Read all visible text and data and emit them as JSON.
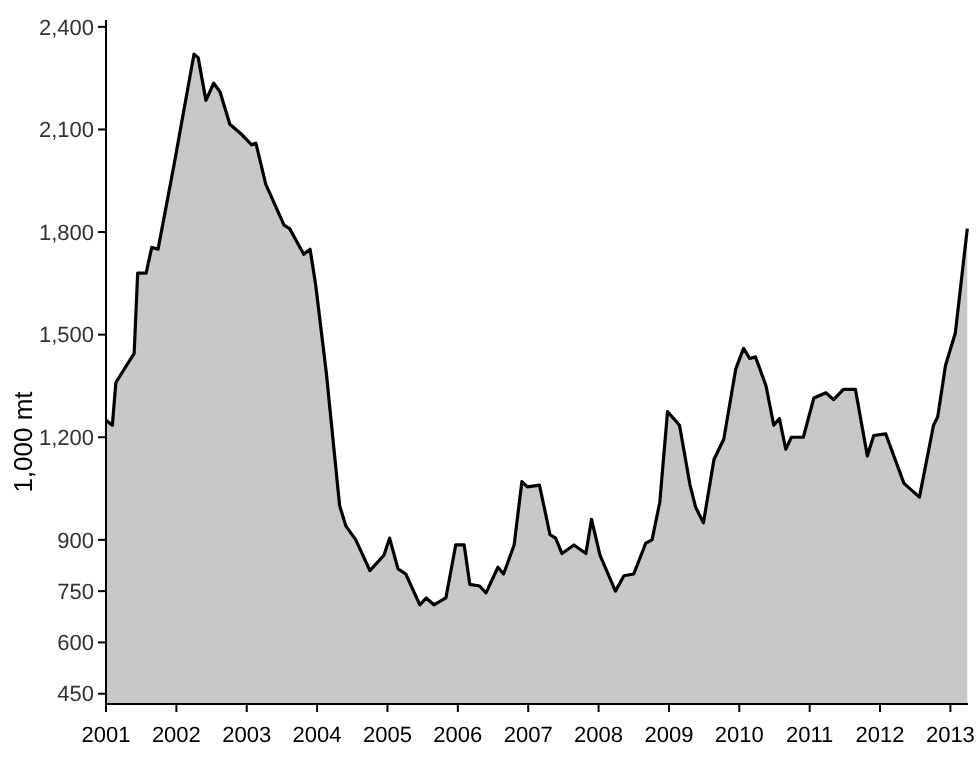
{
  "chart_data": {
    "type": "area",
    "ylabel": "1,000 mt",
    "color": "#c8c8c8",
    "x": [
      2001.0,
      2001.09,
      2001.14,
      2001.4,
      2001.45,
      2001.57,
      2001.65,
      2001.74,
      2001.97,
      2002.25,
      2002.31,
      2002.42,
      2002.53,
      2002.62,
      2002.76,
      2002.93,
      2003.07,
      2003.13,
      2003.27,
      2003.53,
      2003.61,
      2003.81,
      2003.9,
      2003.98,
      2004.13,
      2004.32,
      2004.41,
      2004.55,
      2004.75,
      2004.95,
      2005.03,
      2005.15,
      2005.26,
      2005.46,
      2005.55,
      2005.66,
      2005.83,
      2005.97,
      2006.09,
      2006.17,
      2006.31,
      2006.4,
      2006.57,
      2006.65,
      2006.8,
      2006.91,
      2006.99,
      2007.16,
      2007.31,
      2007.39,
      2007.48,
      2007.65,
      2007.82,
      2007.9,
      2008.02,
      2008.24,
      2008.36,
      2008.5,
      2008.67,
      2008.76,
      2008.87,
      2008.98,
      2009.15,
      2009.3,
      2009.38,
      2009.49,
      2009.64,
      2009.78,
      2009.95,
      2010.06,
      2010.15,
      2010.23,
      2010.38,
      2010.49,
      2010.57,
      2010.66,
      2010.74,
      2010.91,
      2011.06,
      2011.23,
      2011.34,
      2011.48,
      2011.65,
      2011.82,
      2011.91,
      2012.08,
      2012.34,
      2012.56,
      2012.76,
      2012.82,
      2012.93,
      2013.07,
      2013.24
    ],
    "values": [
      1250,
      1235,
      1360,
      1445,
      1680,
      1680,
      1755,
      1750,
      2000,
      2320,
      2310,
      2185,
      2235,
      2210,
      2115,
      2085,
      2055,
      2060,
      1940,
      1820,
      1810,
      1735,
      1750,
      1645,
      1390,
      1000,
      940,
      900,
      810,
      855,
      905,
      815,
      800,
      710,
      730,
      710,
      730,
      885,
      885,
      770,
      765,
      745,
      820,
      800,
      885,
      1070,
      1055,
      1060,
      915,
      905,
      860,
      885,
      860,
      960,
      855,
      750,
      795,
      800,
      890,
      900,
      1010,
      1275,
      1235,
      1060,
      995,
      950,
      1135,
      1195,
      1400,
      1460,
      1430,
      1435,
      1350,
      1235,
      1255,
      1165,
      1200,
      1200,
      1315,
      1330,
      1310,
      1340,
      1340,
      1145,
      1205,
      1210,
      1065,
      1025,
      1235,
      1260,
      1410,
      1505,
      1810
    ],
    "xlim": [
      2001,
      2013.25
    ],
    "xticks": [
      2001,
      2002,
      2003,
      2004,
      2005,
      2006,
      2007,
      2008,
      2009,
      2010,
      2011,
      2012,
      2013
    ],
    "ylim": [
      420,
      2420
    ],
    "yticks": [
      450,
      600,
      750,
      900,
      {
        "value": 1200,
        "label": "1,200"
      },
      {
        "value": 1500,
        "label": "1,500"
      },
      {
        "value": 1800,
        "label": "1,800"
      },
      {
        "value": 2100,
        "label": "2,100"
      },
      {
        "value": 2400,
        "label": "2,400"
      }
    ],
    "grid": false
  }
}
